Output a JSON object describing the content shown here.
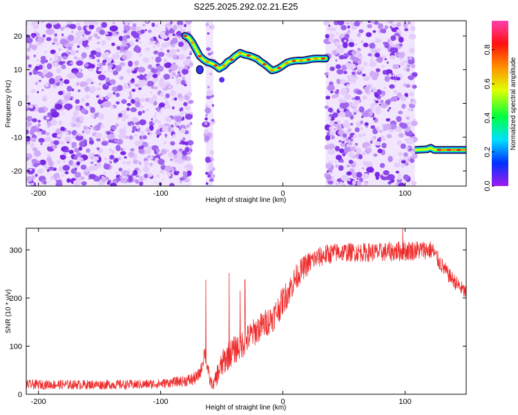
{
  "figure_title": "S225.2025.292.02.21.E25",
  "colors": {
    "snr_line": "#ee2a2a",
    "spectro_background": "#d8b8f8"
  },
  "chart_data": [
    {
      "type": "heatmap",
      "xlabel": "Height of straight line (km)",
      "ylabel": "Frequency (Hz)",
      "xlim": [
        -210,
        150
      ],
      "ylim": [
        -24.5,
        24.5
      ],
      "x_ticks": [
        "-200",
        "-100",
        "0",
        "100"
      ],
      "y_ticks": [
        "-20",
        "-10",
        "0",
        "10",
        "20"
      ],
      "colorbar": {
        "label": "Normalized spectral amplitude",
        "range": [
          0,
          0.97
        ],
        "colormap": [
          "#a01cf0",
          "#0030ff",
          "#00e0ff",
          "#00ff40",
          "#e0ff00",
          "#ff9000",
          "#ff1010",
          "#ff40b0"
        ],
        "ticks": [
          "0.0",
          "0.2",
          "0.4",
          "0.6",
          "0.8"
        ]
      },
      "noise_regions_x": [
        [
          -210,
          -75
        ],
        [
          -63,
          -57
        ],
        [
          35,
          108
        ]
      ],
      "blank_regions_x": [
        [
          -75,
          -63
        ],
        [
          -57,
          35
        ],
        [
          108,
          150
        ]
      ],
      "ridge": {
        "x": [
          -80,
          -77,
          -74,
          -71,
          -68,
          -65,
          -62,
          -58,
          -55,
          -52,
          -48,
          -45,
          -42,
          -39,
          -35,
          -31,
          -28,
          -25,
          -21,
          -18,
          -15,
          -12,
          -9,
          -6,
          -3,
          0,
          3,
          6,
          9,
          12,
          15,
          18,
          21,
          24,
          27,
          30,
          33,
          35
        ],
        "y": [
          20,
          19.5,
          18,
          16,
          14,
          13,
          12.3,
          11.8,
          11.2,
          10.3,
          11.2,
          12.4,
          13,
          14,
          15,
          14.4,
          14.2,
          13.8,
          13.2,
          12.3,
          11.6,
          10.7,
          9.8,
          10,
          10.5,
          11.2,
          12,
          12.4,
          12.6,
          12.7,
          12.7,
          12.8,
          13,
          13.2,
          13.3,
          13.3,
          13.3,
          13.3
        ]
      },
      "ridge_low": {
        "x_range": [
          108,
          150
        ],
        "y": -13.8
      }
    },
    {
      "type": "line",
      "xlabel": "Height of straight line (km)",
      "ylabel": "SNR (10 * v/v)",
      "xlim": [
        -210,
        150
      ],
      "ylim": [
        0,
        345
      ],
      "x_ticks": [
        "-200",
        "-100",
        "0",
        "100"
      ],
      "y_ticks": [
        "0",
        "100",
        "200",
        "300"
      ],
      "series": [
        {
          "trend_x": [
            -210,
            -120,
            -100,
            -90,
            -80,
            -75,
            -70,
            -67,
            -64,
            -60,
            -57,
            -53,
            -48,
            -43,
            -38,
            -33,
            -28,
            -23,
            -18,
            -13,
            -8,
            -3,
            0,
            5,
            10,
            15,
            20,
            25,
            30,
            35,
            45,
            60,
            80,
            100,
            115,
            122,
            128,
            135,
            142,
            150
          ],
          "trend_y": [
            20,
            20,
            22,
            25,
            28,
            30,
            35,
            50,
            90,
            30,
            18,
            45,
            70,
            85,
            95,
            105,
            118,
            130,
            140,
            150,
            160,
            180,
            195,
            215,
            240,
            258,
            270,
            280,
            285,
            290,
            295,
            295,
            295,
            298,
            300,
            300,
            275,
            250,
            230,
            210
          ],
          "noise_amplitude_y": [
            10,
            10,
            10,
            10,
            12,
            14,
            14,
            14,
            20,
            14,
            10,
            25,
            30,
            30,
            30,
            30,
            30,
            30,
            30,
            30,
            30,
            30,
            30,
            30,
            28,
            25,
            25,
            22,
            22,
            22,
            20,
            20,
            20,
            22,
            20,
            20,
            18,
            16,
            16,
            16
          ],
          "spikes": [
            {
              "x": -63,
              "y": 238
            },
            {
              "x": -44,
              "y": 252
            },
            {
              "x": -35,
              "y": 215
            },
            {
              "x": -31,
              "y": 238
            },
            {
              "x": 98,
              "y": 345
            }
          ]
        }
      ]
    }
  ]
}
